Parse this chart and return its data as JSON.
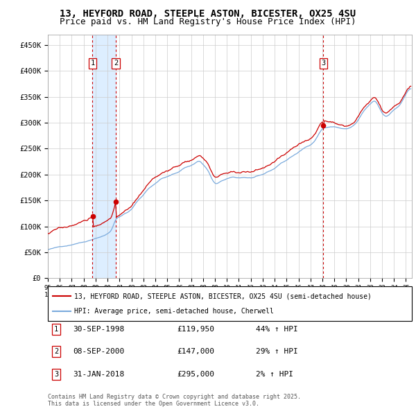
{
  "title_line1": "13, HEYFORD ROAD, STEEPLE ASTON, BICESTER, OX25 4SU",
  "title_line2": "Price paid vs. HM Land Registry's House Price Index (HPI)",
  "title_fontsize": 10,
  "subtitle_fontsize": 9,
  "red_line_color": "#cc0000",
  "blue_line_color": "#7aaadd",
  "background_color": "#ffffff",
  "plot_bg_color": "#ffffff",
  "shade_color": "#ddeeff",
  "grid_color": "#cccccc",
  "ylim": [
    0,
    470000
  ],
  "yticks": [
    0,
    50000,
    100000,
    150000,
    200000,
    250000,
    300000,
    350000,
    400000,
    450000
  ],
  "ytick_labels": [
    "£0",
    "£50K",
    "£100K",
    "£150K",
    "£200K",
    "£250K",
    "£300K",
    "£350K",
    "£400K",
    "£450K"
  ],
  "sale_dates": [
    "1998-09-30",
    "2000-09-08",
    "2018-01-31"
  ],
  "sale_prices": [
    119950,
    147000,
    295000
  ],
  "sale_labels": [
    "1",
    "2",
    "3"
  ],
  "sale_info": [
    {
      "label": "1",
      "date": "30-SEP-1998",
      "price": "£119,950",
      "hpi": "44% ↑ HPI"
    },
    {
      "label": "2",
      "date": "08-SEP-2000",
      "price": "£147,000",
      "hpi": "29% ↑ HPI"
    },
    {
      "label": "3",
      "date": "31-JAN-2018",
      "price": "£295,000",
      "hpi": "2% ↑ HPI"
    }
  ],
  "legend_line1": "13, HEYFORD ROAD, STEEPLE ASTON, BICESTER, OX25 4SU (semi-detached house)",
  "legend_line2": "HPI: Average price, semi-detached house, Cherwell",
  "footnote": "Contains HM Land Registry data © Crown copyright and database right 2025.\nThis data is licensed under the Open Government Licence v3.0.",
  "xstart_year": 1995,
  "xend_year": 2025
}
